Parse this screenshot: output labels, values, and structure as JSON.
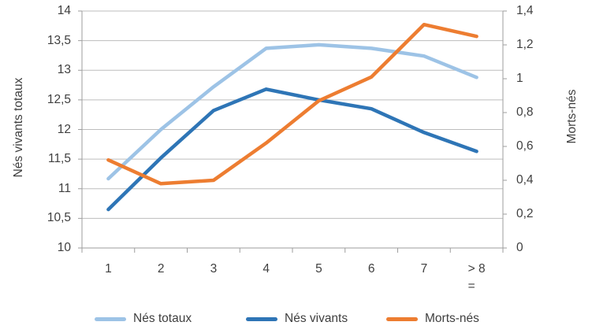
{
  "chart_data": {
    "type": "line",
    "categories": [
      "1",
      "2",
      "3",
      "4",
      "5",
      "6",
      "7",
      "> = 8"
    ],
    "x_tick_display": [
      "1",
      "2",
      "3",
      "4",
      "5",
      "6",
      "7",
      "> 8\n="
    ],
    "series": [
      {
        "name": "Nés totaux",
        "axis": "left",
        "color": "#9DC3E6",
        "values": [
          11.17,
          12.0,
          12.72,
          13.37,
          13.43,
          13.37,
          13.24,
          12.88
        ]
      },
      {
        "name": "Nés vivants",
        "axis": "left",
        "color": "#2E75B6",
        "values": [
          10.65,
          11.52,
          12.32,
          12.68,
          12.5,
          12.35,
          11.95,
          11.63
        ]
      },
      {
        "name": "Morts-nés",
        "axis": "right",
        "color": "#ED7D31",
        "values": [
          0.52,
          0.38,
          0.4,
          0.62,
          0.87,
          1.01,
          1.32,
          1.25
        ]
      }
    ],
    "left_axis": {
      "title": "Nés vivants totaux",
      "min": 10,
      "max": 14,
      "step": 0.5,
      "tick_labels": [
        "14",
        "13,5",
        "13",
        "12,5",
        "12",
        "11,5",
        "11",
        "10,5",
        "10"
      ]
    },
    "right_axis": {
      "title": "Morts-nés",
      "min": 0,
      "max": 1.4,
      "step": 0.2,
      "tick_labels": [
        "1,4",
        "1,2",
        "1",
        "0,8",
        "0,6",
        "0,4",
        "0,2",
        "0"
      ]
    },
    "legend": {
      "position": "bottom",
      "items": [
        "Nés totaux",
        "Nés vivants",
        "Morts-nés"
      ]
    },
    "grid": true
  },
  "colors": {
    "series_nes_totaux": "#9DC3E6",
    "series_nes_vivants": "#2E75B6",
    "series_morts_nes": "#ED7D31",
    "gridline": "#BDBDBD",
    "axis_line": "#9E9E9E",
    "text": "#3F3F3F",
    "background": "#FFFFFF"
  }
}
